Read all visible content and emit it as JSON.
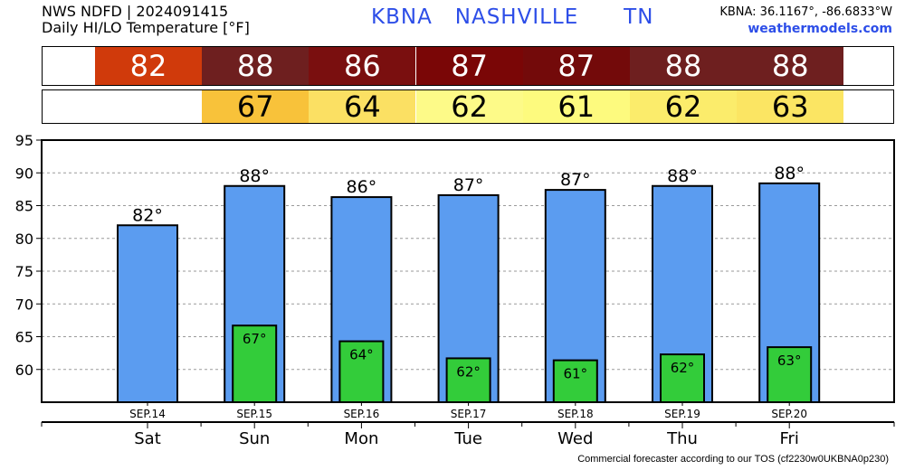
{
  "header": {
    "line1": "NWS NDFD | 2024091415",
    "line2": "Daily HI/LO Temperature [°F]",
    "station": "KBNA",
    "city": "NASHVILLE",
    "state": "TN",
    "coords": "KBNA: 36.1167°, -86.6833°W",
    "site": "weathermodels.com"
  },
  "footer": "Commercial forecaster according to our TOS (cf2230w0UKBNA0p230)",
  "colors": {
    "hi_bar": "#5b9cf0",
    "lo_bar": "#33cc3a",
    "hi_cells": [
      "#d03a0b",
      "#6e1f1f",
      "#7a0f0f",
      "#7a0606",
      "#730a0a",
      "#6e1f1f",
      "#6e1f1f"
    ],
    "lo_cells": [
      "#ffffff",
      "#f8c23a",
      "#fbe063",
      "#fdfa88",
      "#fdfa7e",
      "#fbec6b",
      "#fbe563"
    ]
  },
  "chart_data": {
    "type": "bar",
    "categories": [
      "Sat",
      "Sun",
      "Mon",
      "Tue",
      "Wed",
      "Thu",
      "Fri"
    ],
    "dates": [
      "SEP.14",
      "SEP.15",
      "SEP.16",
      "SEP.17",
      "SEP.18",
      "SEP.19",
      "SEP.20"
    ],
    "series": [
      {
        "values": [
          82,
          88,
          86.3,
          86.6,
          87.4,
          88,
          88.4
        ],
        "labels": [
          "82°",
          "88°",
          "86°",
          "87°",
          "87°",
          "88°",
          "88°"
        ]
      },
      {
        "values": [
          null,
          66.7,
          64.3,
          61.7,
          61.4,
          62.3,
          63.4
        ],
        "labels": [
          "",
          "67°",
          "64°",
          "62°",
          "61°",
          "62°",
          "63°"
        ]
      }
    ],
    "hi_strip": [
      "82",
      "88",
      "86",
      "87",
      "87",
      "88",
      "88"
    ],
    "lo_strip": [
      "",
      "67",
      "64",
      "62",
      "61",
      "62",
      "63"
    ],
    "ylim": [
      55,
      95
    ],
    "yticks": [
      "95",
      "90",
      "85",
      "80",
      "75",
      "70",
      "65",
      "60"
    ],
    "grid": true
  }
}
